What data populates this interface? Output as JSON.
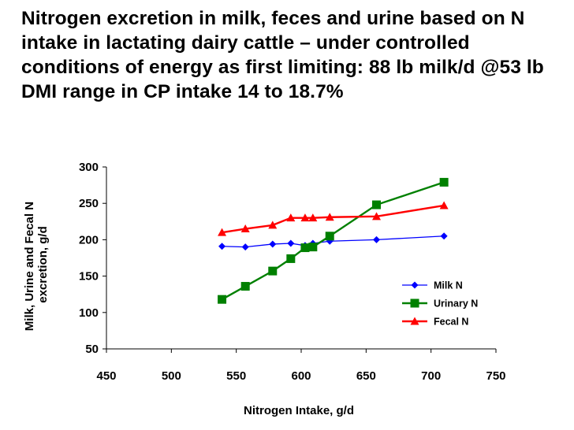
{
  "slide": {
    "title": "Nitrogen excretion in milk, feces and urine based on N intake in lactating dairy cattle – under controlled conditions of energy as first limiting: 88 lb milk/d @53 lb DMI range in CP intake 14 to 18.7%"
  },
  "chart_data": {
    "type": "line",
    "title": "",
    "xlabel": "Nitrogen Intake, g/d",
    "ylabel_lines": [
      "Milk, Urine and Fecal N",
      "excretion, g/d"
    ],
    "xlim": [
      450,
      750
    ],
    "ylim": [
      50,
      300
    ],
    "xticks": [
      450,
      500,
      550,
      600,
      650,
      700,
      750
    ],
    "yticks": [
      50,
      100,
      150,
      200,
      250,
      300
    ],
    "grid": false,
    "legend_position": "bottom-right",
    "series": [
      {
        "name": "Milk N",
        "color": "#0000FF",
        "marker": "diamond",
        "points": [
          [
            539,
            191
          ],
          [
            557,
            190
          ],
          [
            578,
            194
          ],
          [
            592,
            195
          ],
          [
            603,
            192
          ],
          [
            609,
            195
          ],
          [
            622,
            198
          ],
          [
            658,
            200
          ],
          [
            710,
            205
          ]
        ]
      },
      {
        "name": "Urinary N",
        "color": "#008000",
        "marker": "square",
        "points": [
          [
            539,
            118
          ],
          [
            557,
            136
          ],
          [
            578,
            157
          ],
          [
            592,
            174
          ],
          [
            603,
            189
          ],
          [
            609,
            190
          ],
          [
            622,
            205
          ],
          [
            658,
            248
          ],
          [
            710,
            279
          ]
        ]
      },
      {
        "name": "Fecal N",
        "color": "#FF0000",
        "marker": "triangle",
        "points": [
          [
            539,
            210
          ],
          [
            557,
            215
          ],
          [
            578,
            220
          ],
          [
            592,
            230
          ],
          [
            603,
            230
          ],
          [
            609,
            230
          ],
          [
            622,
            231
          ],
          [
            658,
            232
          ],
          [
            710,
            247
          ]
        ]
      }
    ]
  }
}
